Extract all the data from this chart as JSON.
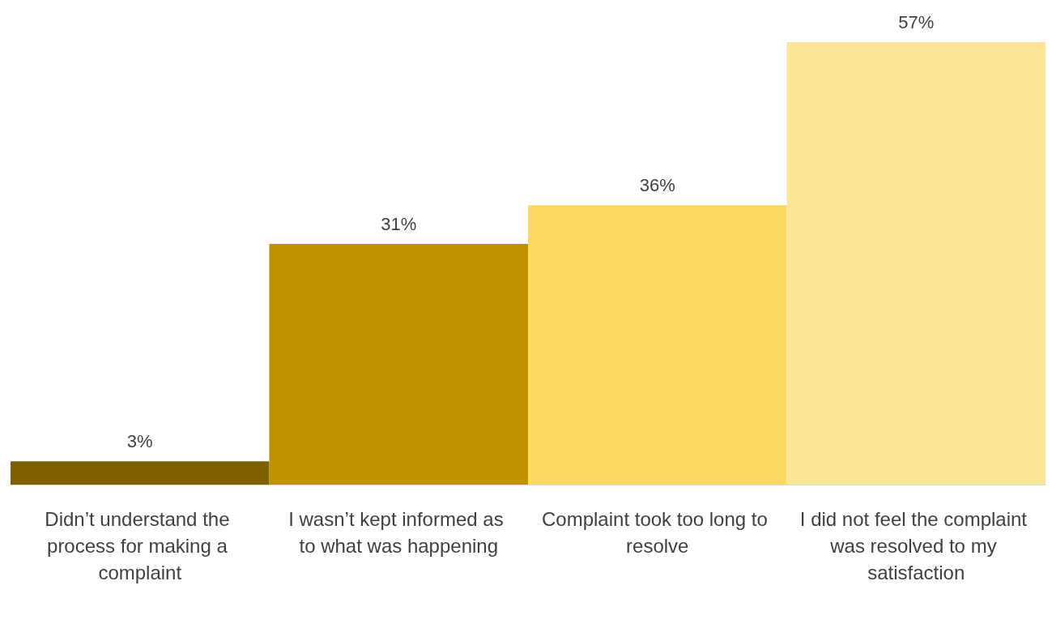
{
  "chart_data": {
    "type": "bar",
    "categories": [
      "Didn’t understand the process for making a complaint",
      "I wasn’t kept informed as to what was happening",
      "Complaint took too long to resolve",
      "I did not feel the complaint was resolved to my satisfaction"
    ],
    "values": [
      3,
      31,
      36,
      57
    ],
    "colors": [
      "#7f6000",
      "#bf9000",
      "#ffd966",
      "#ffe599"
    ],
    "value_labels": [
      "3%",
      "31%",
      "36%",
      "57%"
    ]
  }
}
